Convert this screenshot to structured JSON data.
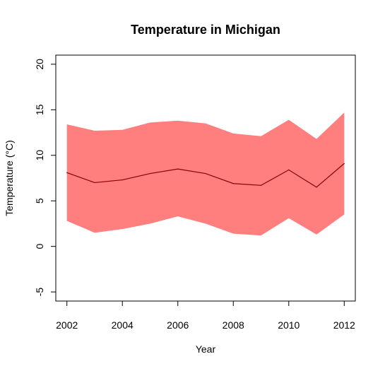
{
  "chart_data": {
    "type": "area",
    "title": "Temperature in Michigan",
    "xlabel": "Year",
    "ylabel": "Temperature (°C)",
    "xlim": [
      2001.6,
      2012.4
    ],
    "ylim": [
      -6,
      21
    ],
    "x_ticks": [
      2002,
      2004,
      2006,
      2008,
      2010,
      2012
    ],
    "x_tick_labels": [
      "2002",
      "2004",
      "2006",
      "2008",
      "2010",
      "2012"
    ],
    "y_ticks": [
      -5,
      0,
      5,
      10,
      15,
      20
    ],
    "y_tick_labels": [
      "-5",
      "0",
      "5",
      "10",
      "15",
      "20"
    ],
    "grid": false,
    "legend": "none",
    "x": [
      2002,
      2003,
      2004,
      2005,
      2006,
      2007,
      2008,
      2009,
      2010,
      2011,
      2012
    ],
    "series": [
      {
        "role": "mean",
        "color": "#8b0000",
        "values": [
          8.1,
          7.0,
          7.3,
          8.0,
          8.5,
          8.0,
          6.9,
          6.7,
          8.4,
          6.5,
          9.1
        ]
      },
      {
        "role": "band-lower",
        "color": "#ff7f7f",
        "values": [
          2.8,
          1.5,
          1.9,
          2.5,
          3.3,
          2.5,
          1.4,
          1.2,
          3.1,
          1.3,
          3.5
        ]
      },
      {
        "role": "band-upper",
        "color": "#ff7f7f",
        "values": [
          13.4,
          12.7,
          12.8,
          13.6,
          13.8,
          13.5,
          12.4,
          12.1,
          13.9,
          11.8,
          14.7
        ]
      }
    ]
  }
}
